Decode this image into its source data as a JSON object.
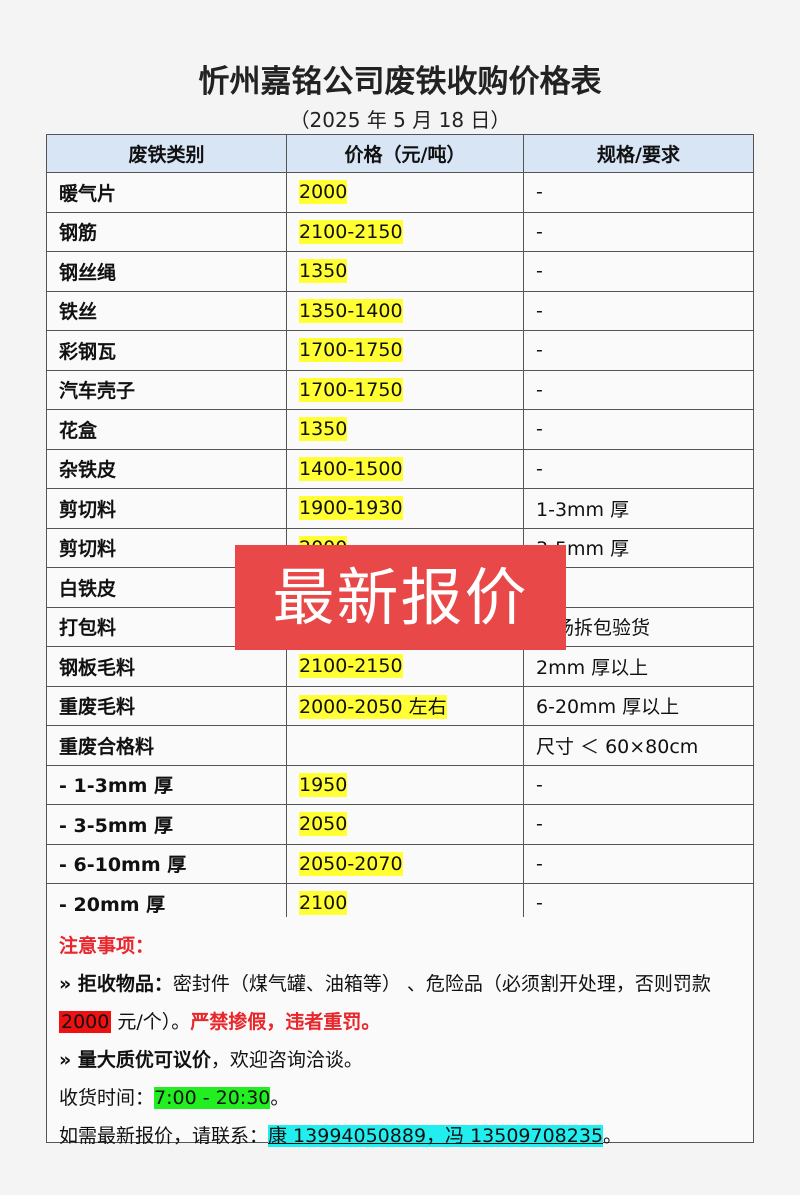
{
  "title": "忻州嘉铭公司废铁收购价格表",
  "date": "（2025 年 5 月 18 日）",
  "table": {
    "headers": [
      "废铁类别",
      "价格（元/吨）",
      "规格/要求"
    ],
    "rows": [
      {
        "category": "暖气片",
        "price": "2000",
        "spec": "-"
      },
      {
        "category": "钢筋",
        "price": "2100-2150",
        "spec": "-"
      },
      {
        "category": "钢丝绳",
        "price": "1350",
        "spec": "-"
      },
      {
        "category": "铁丝",
        "price": "1350-1400",
        "spec": "-"
      },
      {
        "category": "彩钢瓦",
        "price": "1700-1750",
        "spec": "-"
      },
      {
        "category": "汽车壳子",
        "price": "1700-1750",
        "spec": "-"
      },
      {
        "category": "花盒",
        "price": "1350",
        "spec": "-"
      },
      {
        "category": "杂铁皮",
        "price": "1400-1500",
        "spec": "-"
      },
      {
        "category": "剪切料",
        "price": "1900-1930",
        "spec": "1-3mm 厚"
      },
      {
        "category": "剪切料",
        "price": "2000",
        "spec": "3-5mm 厚"
      },
      {
        "category": "白铁皮",
        "price": "",
        "spec": ""
      },
      {
        "category": "打包料",
        "price": "",
        "spec": "现场拆包验货"
      },
      {
        "category": "钢板毛料",
        "price": "2100-2150",
        "spec": "2mm 厚以上"
      },
      {
        "category": "重废毛料",
        "price": "2000-2050 左右",
        "spec": "6-20mm 厚以上"
      },
      {
        "category": "重废合格料",
        "price": "",
        "spec": "尺寸 ＜ 60×80cm"
      },
      {
        "category": "- 1-3mm 厚",
        "price": "1950",
        "spec": "-"
      },
      {
        "category": "- 3-5mm 厚",
        "price": "2050",
        "spec": "-"
      },
      {
        "category": "- 6-10mm 厚",
        "price": "2050-2070",
        "spec": "-"
      },
      {
        "category": "- 20mm 厚",
        "price": "2100",
        "spec": "-"
      }
    ]
  },
  "notes": {
    "heading": "注意事项：",
    "reject_label": "» 拒收物品：",
    "reject_text": "密封件（煤气罐、油箱等） 、危险品（必须割开处理，否则罚款 ",
    "fine": "2000",
    "fine_unit": " 元/个）。",
    "warning": "严禁掺假，违者重罚。",
    "bulk_label": "» 量大质优可议价",
    "bulk_text": "，欢迎咨询洽谈。",
    "hours_label": "收货时间：",
    "hours": "7:00 - 20:30",
    "hours_end": "。",
    "contact_label": "如需最新报价，请联系：",
    "contact": "康 13994050889，冯 13509708235",
    "contact_end": "。"
  },
  "overlay": "最新报价",
  "colors": {
    "highlight": "#ffff33",
    "header_bg": "#d7e5f5",
    "overlay": "#e84848",
    "warning": "#e8262c",
    "hours_bg": "#22ee22",
    "contact_bg": "#22eef0"
  }
}
